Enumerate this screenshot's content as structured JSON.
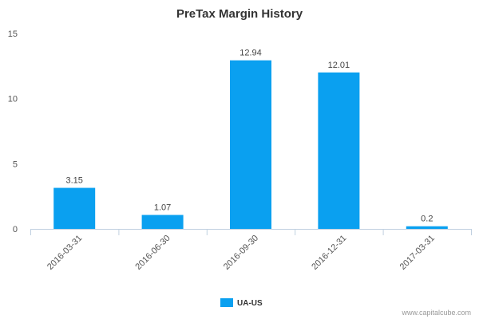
{
  "chart_data": {
    "type": "bar",
    "title": "PreTax Margin History",
    "categories": [
      "2016-03-31",
      "2016-06-30",
      "2016-09-30",
      "2016-12-31",
      "2017-03-31"
    ],
    "series": [
      {
        "name": "UA-US",
        "values": [
          3.15,
          1.07,
          12.94,
          12.01,
          0.2
        ],
        "color": "#0aa0f0"
      }
    ],
    "data_labels": [
      "3.15",
      "1.07",
      "12.94",
      "12.01",
      "0.2"
    ],
    "yticks": [
      0,
      5,
      10,
      15
    ],
    "ylim": [
      0,
      15
    ],
    "xlabel": "",
    "ylabel": "",
    "grid": false,
    "legend_position": "bottom-center"
  },
  "credit": "www.capitalcube.com"
}
